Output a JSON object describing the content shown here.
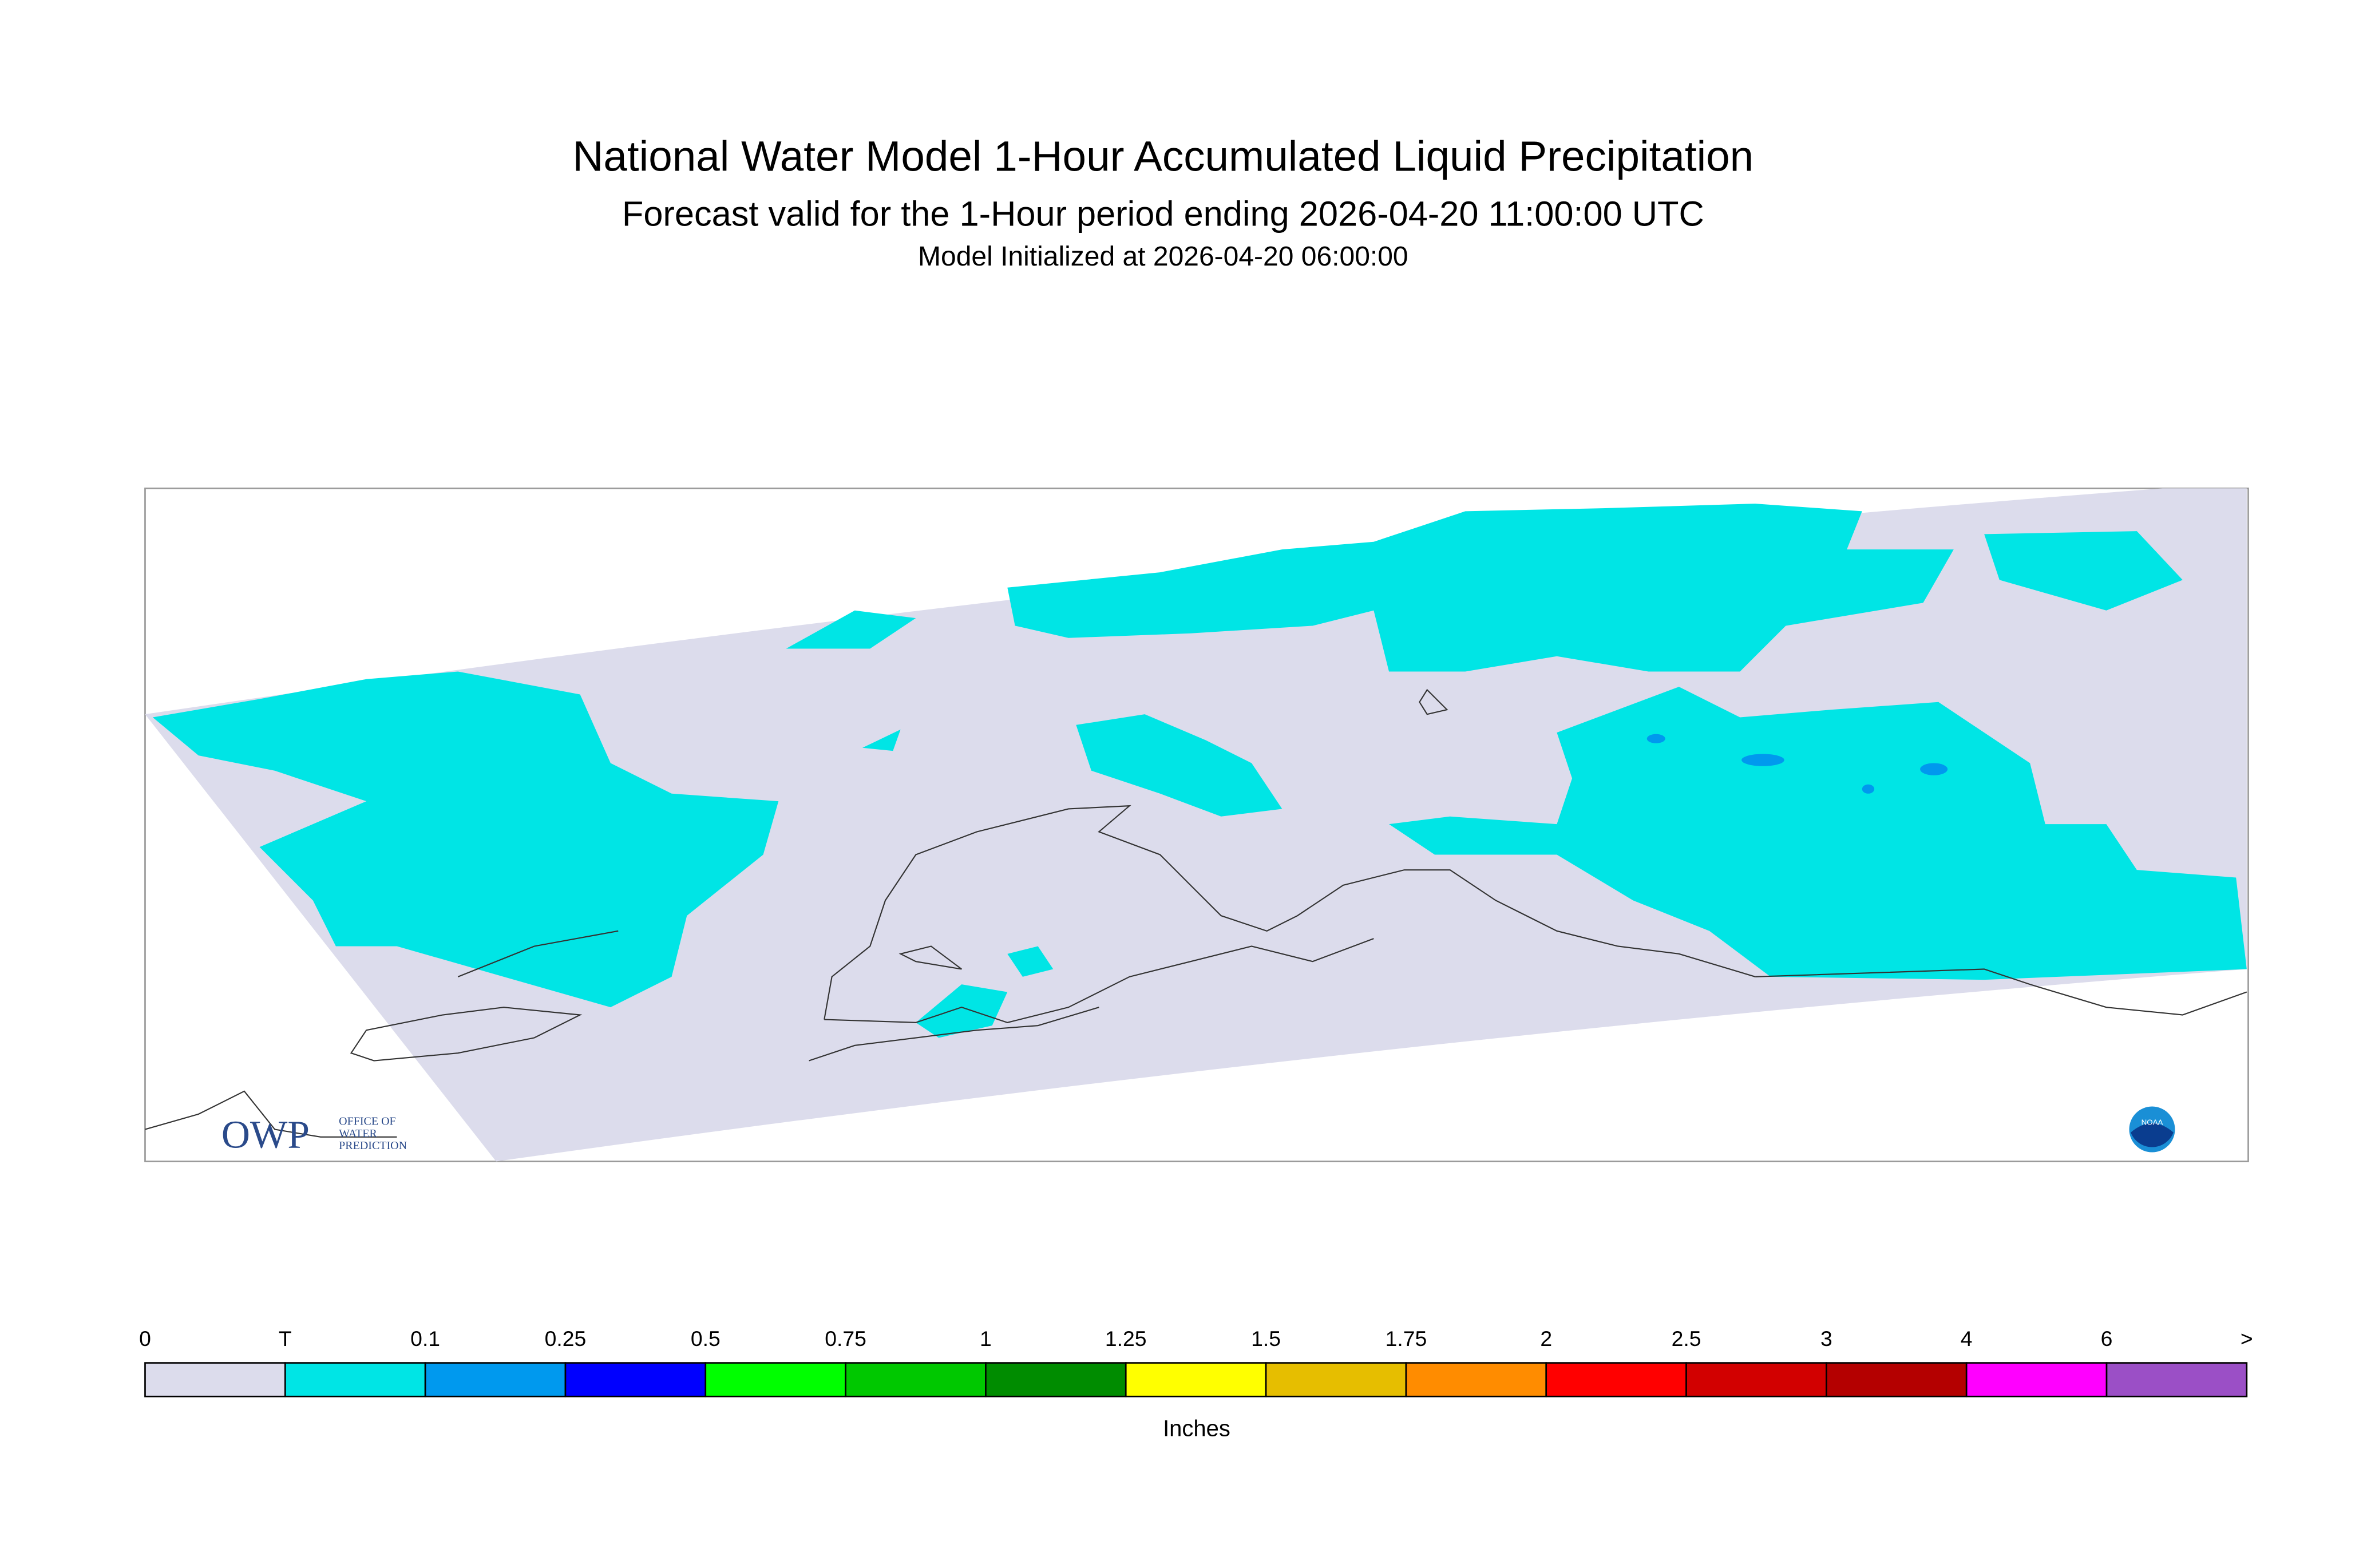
{
  "header": {
    "title": "National Water Model 1-Hour Accumulated Liquid Precipitation",
    "subtitle": "Forecast valid for the 1-Hour period ending 2026-04-20 11:00:00 UTC",
    "init": "Model Initialized at 2026-04-20 06:00:00"
  },
  "legend": {
    "labels": [
      "0",
      "T",
      "0.1",
      "0.25",
      "0.5",
      "0.75",
      "1",
      "1.25",
      "1.5",
      "1.75",
      "2",
      "2.5",
      "3",
      "4",
      "6",
      ">"
    ],
    "colors": [
      "#dcdcec",
      "#00e5e5",
      "#0099ee",
      "#0000ff",
      "#00ff00",
      "#00c800",
      "#008c00",
      "#ffff00",
      "#e6be00",
      "#ff8c00",
      "#ff0000",
      "#d20000",
      "#b40000",
      "#ff00ff",
      "#9b4fc6"
    ],
    "units": "Inches"
  },
  "logos": {
    "owp": "OWP",
    "owp_lines": [
      "OFFICE OF",
      "WATER",
      "PREDICTION"
    ],
    "noaa": "NOAA"
  }
}
